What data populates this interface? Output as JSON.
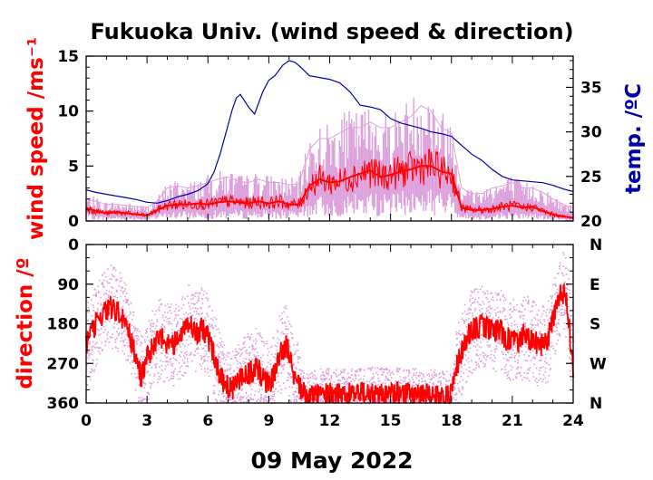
{
  "title": "Fukuoka Univ. (wind speed & direction)",
  "date_label": "09 May 2022",
  "colors": {
    "wind_mean": "#ff0000",
    "wind_gust": "#dda0dd",
    "temperature": "#0000aa",
    "direction_scatter": "#dda0dd",
    "direction_mean": "#ff0000"
  },
  "chart_data": [
    {
      "type": "line",
      "xlabel": "",
      "ylabel": "wind speed /ms⁻¹",
      "y2label": "temp. /ºC",
      "xlim": [
        0,
        24
      ],
      "ylim": [
        0,
        15
      ],
      "y2lim": [
        20,
        38.5
      ],
      "yticks": [
        "0",
        "5",
        "10",
        "15"
      ],
      "y2ticks": [
        "20",
        "25",
        "30",
        "35"
      ],
      "grid": false,
      "series": [
        {
          "x": [
            0,
            0.5,
            1,
            1.5,
            2,
            2.5,
            3,
            3.5,
            4,
            4.5,
            5,
            5.5,
            6,
            6.5,
            7,
            7.5,
            8,
            8.5,
            9,
            9.5,
            10,
            10.5,
            11,
            11.5,
            12,
            12.5,
            13,
            13.5,
            14,
            14.5,
            15,
            15.5,
            16,
            16.5,
            17,
            17.5,
            18,
            18.5,
            19,
            19.5,
            20,
            20.5,
            21,
            21.5,
            22,
            22.5,
            23,
            23.5,
            24
          ],
          "values": [
            1.2,
            0.9,
            0.7,
            0.8,
            0.7,
            0.6,
            0.5,
            1.0,
            1.4,
            1.5,
            1.5,
            1.6,
            1.5,
            1.7,
            1.8,
            1.7,
            1.6,
            1.8,
            1.6,
            1.8,
            1.5,
            1.5,
            3.2,
            3.8,
            3.5,
            3.6,
            4.0,
            4.3,
            4.6,
            4.0,
            4.2,
            4.5,
            4.7,
            5.0,
            5.0,
            4.5,
            4.3,
            1.2,
            1.0,
            1.0,
            1.1,
            1.3,
            1.4,
            1.2,
            1.3,
            0.9,
            0.6,
            0.4,
            0.3
          ]
        },
        {
          "x": [
            0,
            0.5,
            1,
            1.5,
            2,
            2.5,
            3,
            3.5,
            4,
            4.5,
            5,
            5.5,
            6,
            6.5,
            7,
            7.5,
            8,
            8.5,
            9,
            9.5,
            10,
            10.5,
            11,
            11.5,
            12,
            12.5,
            13,
            13.5,
            14,
            14.5,
            15,
            15.5,
            16,
            16.5,
            17,
            17.5,
            18,
            18.5,
            19,
            19.5,
            20,
            20.5,
            21,
            21.5,
            22,
            22.5,
            23,
            23.5,
            24
          ],
          "values": [
            2.0,
            1.8,
            1.5,
            1.5,
            1.4,
            1.3,
            1.2,
            1.8,
            3.0,
            3.2,
            3.0,
            3.2,
            3.5,
            3.8,
            4.0,
            3.6,
            3.5,
            3.8,
            3.5,
            3.5,
            3.3,
            3.4,
            6.5,
            7.5,
            7.5,
            8.0,
            8.5,
            8.5,
            9.0,
            8.5,
            8.5,
            9.0,
            9.5,
            10.5,
            10.0,
            8.5,
            8.0,
            3.0,
            2.5,
            2.5,
            3.0,
            3.2,
            3.5,
            3.0,
            3.0,
            2.6,
            2.0,
            1.5,
            1.2
          ]
        },
        {
          "axis": "right",
          "x": [
            0,
            0.5,
            1,
            1.5,
            2,
            2.5,
            3,
            3.5,
            4,
            4.5,
            5,
            5.5,
            6,
            6.3,
            6.6,
            6.9,
            7.2,
            7.4,
            7.6,
            8,
            8.3,
            8.7,
            9,
            9.3,
            9.7,
            10,
            10.3,
            10.6,
            11,
            11.5,
            12,
            12.5,
            13,
            13.5,
            14,
            14.5,
            15,
            15.5,
            16,
            16.5,
            17,
            17.5,
            18,
            18.5,
            19,
            19.5,
            20,
            20.5,
            21,
            21.5,
            22,
            22.5,
            23,
            23.5,
            24
          ],
          "values": [
            23.5,
            23.2,
            23.0,
            22.8,
            22.6,
            22.4,
            22.1,
            22.0,
            22.3,
            22.7,
            23.0,
            23.4,
            24.2,
            25.5,
            27.5,
            30.0,
            32.5,
            33.8,
            34.2,
            32.8,
            32.0,
            34.5,
            35.8,
            36.3,
            37.5,
            38.0,
            37.8,
            37.2,
            36.3,
            36.1,
            35.9,
            35.5,
            34.5,
            33.0,
            32.8,
            32.5,
            31.5,
            31.0,
            30.7,
            30.4,
            30.0,
            29.8,
            29.5,
            28.5,
            27.5,
            26.8,
            25.8,
            25.0,
            24.6,
            24.5,
            24.4,
            24.3,
            24.0,
            23.6,
            23.3
          ]
        }
      ]
    },
    {
      "type": "scatter",
      "xlabel": "09 May 2022",
      "ylabel": "direction /º",
      "xlim": [
        0,
        24
      ],
      "ylim": [
        360,
        0
      ],
      "xticks": [
        "0",
        "3",
        "6",
        "9",
        "12",
        "15",
        "18",
        "21",
        "24"
      ],
      "yticks": [
        "0",
        "90",
        "180",
        "270",
        "360"
      ],
      "y2ticks": [
        "N",
        "E",
        "S",
        "W",
        "N"
      ],
      "grid": false,
      "series": [
        {
          "x": [
            0,
            0.3,
            0.6,
            0.9,
            1.2,
            1.5,
            1.8,
            2.1,
            2.4,
            2.7,
            3,
            3.3,
            3.6,
            3.9,
            4.2,
            4.5,
            4.8,
            5.1,
            5.4,
            5.7,
            6,
            6.3,
            6.6,
            6.9,
            7.2,
            7.5,
            7.8,
            8.1,
            8.4,
            8.7,
            9,
            9.3,
            9.6,
            9.9,
            10.2,
            10.5,
            10.8,
            11.1,
            11.4,
            11.7,
            12,
            12.3,
            12.6,
            12.9,
            13.2,
            13.5,
            13.8,
            14.1,
            14.4,
            14.7,
            15,
            15.3,
            15.6,
            15.9,
            16.2,
            16.5,
            16.8,
            17.1,
            17.4,
            17.7,
            18,
            18.3,
            18.6,
            18.9,
            19.2,
            19.5,
            19.8,
            20.1,
            20.4,
            20.7,
            21,
            21.3,
            21.6,
            21.9,
            22.2,
            22.5,
            22.8,
            23.1,
            23.4,
            23.7,
            24
          ],
          "values": [
            230,
            200,
            170,
            150,
            140,
            150,
            165,
            200,
            250,
            300,
            260,
            230,
            210,
            220,
            230,
            220,
            200,
            180,
            200,
            190,
            210,
            250,
            300,
            320,
            330,
            310,
            300,
            290,
            280,
            300,
            320,
            290,
            240,
            230,
            300,
            320,
            345,
            345,
            340,
            340,
            340,
            342,
            335,
            338,
            340,
            338,
            340,
            336,
            340,
            338,
            340,
            338,
            340,
            342,
            338,
            340,
            342,
            340,
            342,
            345,
            340,
            270,
            230,
            200,
            190,
            185,
            190,
            200,
            195,
            215,
            210,
            220,
            205,
            220,
            225,
            230,
            210,
            150,
            100,
            130,
            290
          ]
        }
      ]
    }
  ]
}
